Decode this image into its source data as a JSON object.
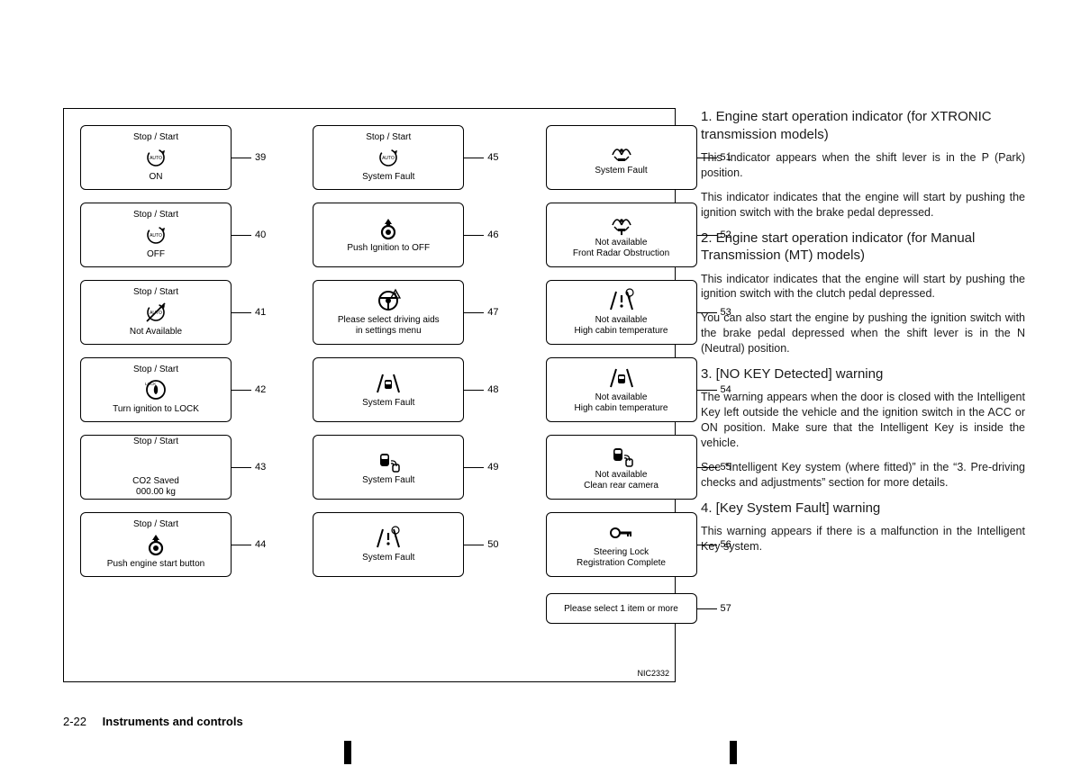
{
  "diagram": {
    "code": "NIC2332",
    "col1": [
      {
        "num": "39",
        "top": "Stop / Start",
        "bot": "ON",
        "icon": "auto-arrow"
      },
      {
        "num": "40",
        "top": "Stop / Start",
        "bot": "OFF",
        "icon": "auto-arrow"
      },
      {
        "num": "41",
        "top": "Stop / Start",
        "bot": "Not Available",
        "icon": "auto-slash"
      },
      {
        "num": "42",
        "top": "Stop / Start",
        "bot": "Turn ignition to LOCK",
        "icon": "lock-dial"
      },
      {
        "num": "43",
        "top": "Stop / Start",
        "bot": "CO2 Saved\n000.00 kg",
        "icon": ""
      },
      {
        "num": "44",
        "top": "Stop / Start",
        "bot": "Push engine start button",
        "icon": "push-button"
      }
    ],
    "col2": [
      {
        "num": "45",
        "top": "Stop / Start",
        "bot": "System Fault",
        "icon": "auto-arrow"
      },
      {
        "num": "46",
        "top": "",
        "bot": "Push Ignition to OFF",
        "icon": "push-button"
      },
      {
        "num": "47",
        "top": "",
        "bot": "Please select driving aids\nin settings menu",
        "icon": "wheel-warn"
      },
      {
        "num": "48",
        "top": "",
        "bot": "System Fault",
        "icon": "lane-car"
      },
      {
        "num": "49",
        "top": "",
        "bot": "System Fault",
        "icon": "car-wave"
      },
      {
        "num": "50",
        "top": "",
        "bot": "System Fault",
        "icon": "lane-warn"
      }
    ],
    "col3": [
      {
        "num": "51",
        "top": "",
        "bot": "System Fault",
        "icon": "radar"
      },
      {
        "num": "52",
        "top": "",
        "bot": "Not available\nFront Radar Obstruction",
        "icon": "radar-warn"
      },
      {
        "num": "53",
        "top": "",
        "bot": "Not available\nHigh cabin temperature",
        "icon": "lane-therm"
      },
      {
        "num": "54",
        "top": "",
        "bot": "Not available\nHigh cabin temperature",
        "icon": "lane-car"
      },
      {
        "num": "55",
        "top": "",
        "bot": "Not available\nClean rear camera",
        "icon": "car-wave"
      },
      {
        "num": "56",
        "top": "",
        "bot": "Steering Lock\nRegistration Complete",
        "icon": "key"
      }
    ],
    "col3_extra": {
      "num": "57",
      "text": "Please select 1 item or more"
    }
  },
  "text": {
    "h1": "1. Engine start operation indicator (for XTRONIC transmission models)",
    "p1a": "This indicator appears when the shift lever is in the P (Park) position.",
    "p1b": "This indicator indicates that the engine will start by pushing the ignition switch with the brake pedal depressed.",
    "h2": "2. Engine start operation indicator (for Manual Transmission (MT) models)",
    "p2a": "This indicator indicates that the engine will start by pushing the ignition switch with the clutch pedal depressed.",
    "p2b": "You can also start the engine by pushing the ignition switch with the brake pedal depressed when the shift lever is in the N (Neutral) position.",
    "h3": "3. [NO KEY Detected] warning",
    "p3a": "The warning appears when the door is closed with the Intelligent Key left outside the vehicle and the ignition switch in the ACC or ON position. Make sure that the Intelligent Key is inside the vehicle.",
    "p3b": "See “Intelligent Key system (where fitted)” in the “3. Pre-driving checks and adjustments” section for more details.",
    "h4": "4. [Key System Fault] warning",
    "p4a": "This warning appears if there is a malfunction in the Intelligent Key system."
  },
  "footer": {
    "page": "2-22",
    "section": "Instruments and controls"
  }
}
